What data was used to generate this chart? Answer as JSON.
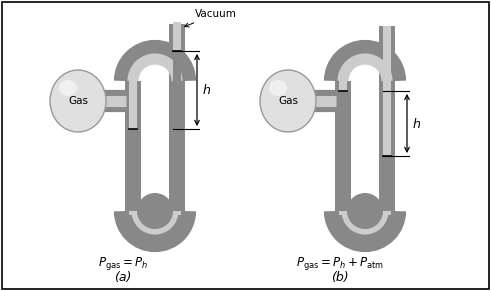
{
  "background_color": "#ffffff",
  "border_color": "#000000",
  "tube_dark": "#888888",
  "tube_light": "#cccccc",
  "mercury_color": "#888888",
  "bulb_fill": "#e0e0e0",
  "bulb_edge": "#999999",
  "bulb_highlight": "#f5f5f5",
  "text_color": "#000000",
  "vacuum_label": "Vacuum",
  "gas_label": "Gas",
  "formula_a": "$P_\\mathrm{gas} = P_h$",
  "formula_b": "$P_\\mathrm{gas} = P_h + P_\\mathrm{atm}$",
  "label_a": "(a)",
  "label_b": "(b)",
  "h_label": "$h$",
  "fig_width": 4.91,
  "fig_height": 2.91
}
